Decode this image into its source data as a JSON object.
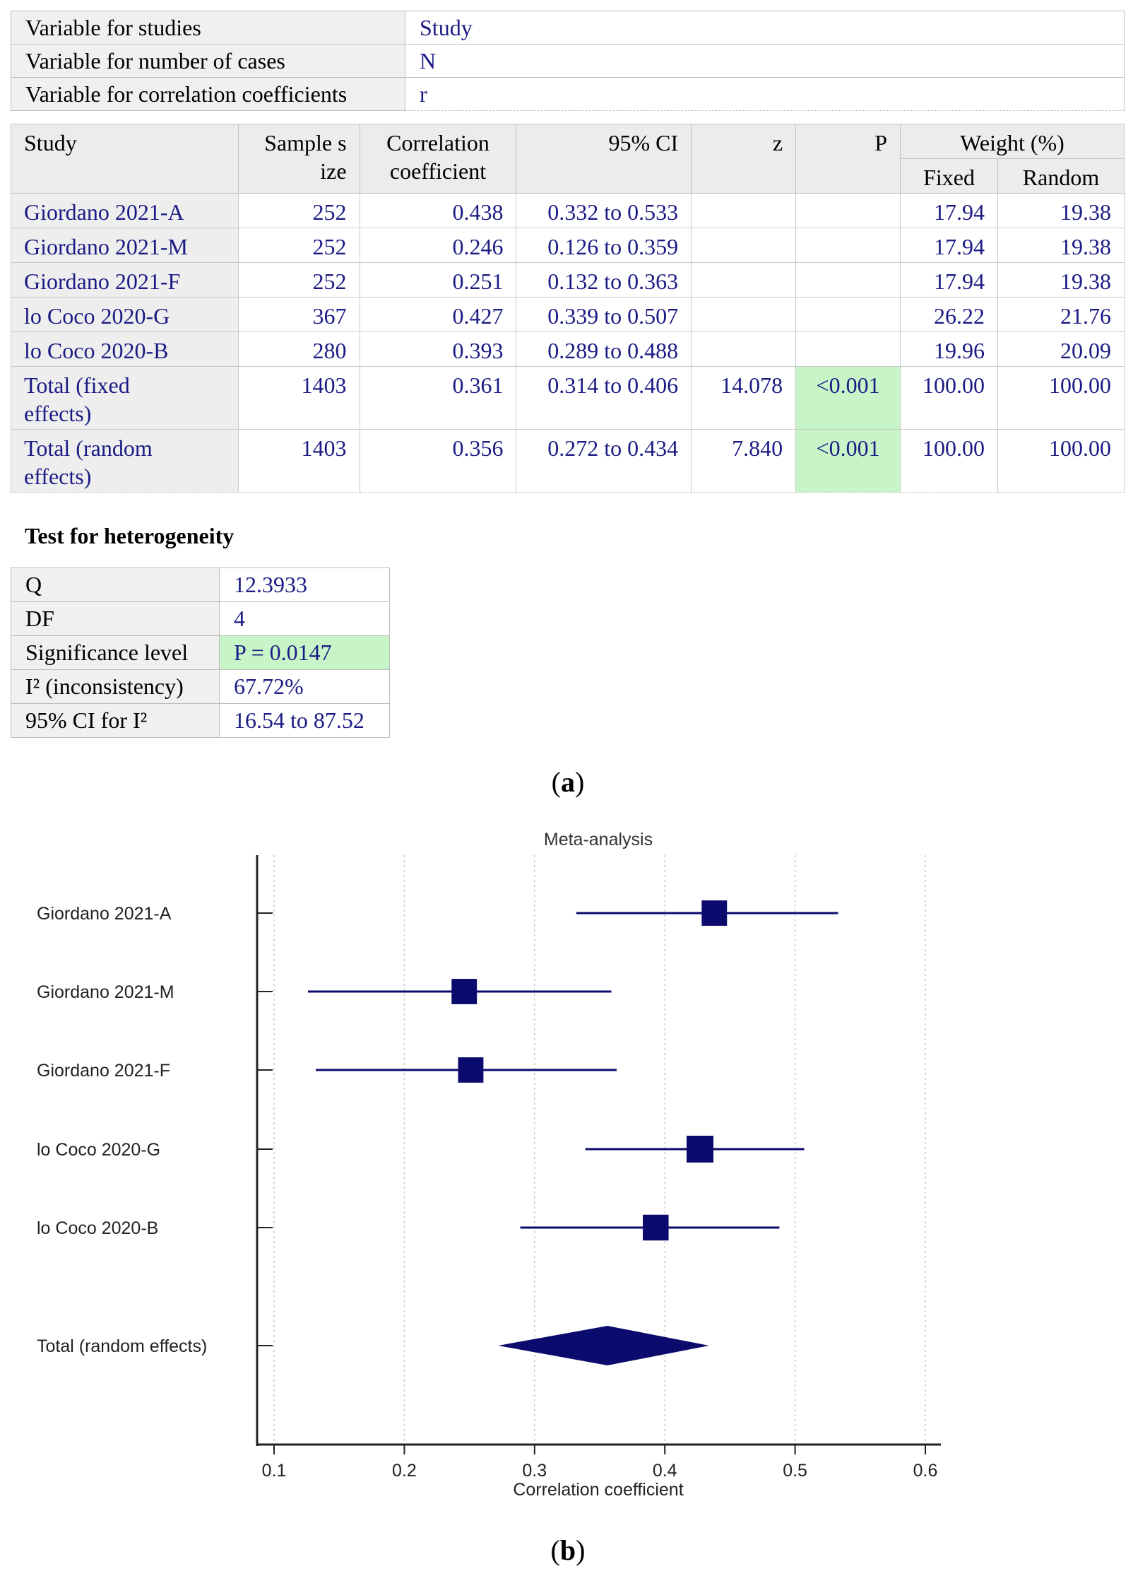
{
  "variables": [
    {
      "label": "Variable for studies",
      "value": "Study"
    },
    {
      "label": "Variable for number of cases",
      "value": "N"
    },
    {
      "label": "Variable for correlation coefficients",
      "value": "r"
    }
  ],
  "results": {
    "headers": {
      "study": "Study",
      "sample_size_1": "Sample s",
      "sample_size_2": "ize",
      "corr_1": "Correlation",
      "corr_2": "coefficient",
      "ci": "95% CI",
      "z": "z",
      "p": "P",
      "weight": "Weight (%)",
      "fixed": "Fixed",
      "random": "Random"
    },
    "rows": [
      {
        "study": "Giordano 2021-A",
        "n": "252",
        "r": "0.438",
        "ci": "0.332 to 0.533",
        "z": "",
        "p": "",
        "fixed": "17.94",
        "random": "19.38"
      },
      {
        "study": "Giordano 2021-M",
        "n": "252",
        "r": "0.246",
        "ci": "0.126 to 0.359",
        "z": "",
        "p": "",
        "fixed": "17.94",
        "random": "19.38"
      },
      {
        "study": "Giordano 2021-F",
        "n": "252",
        "r": "0.251",
        "ci": "0.132 to 0.363",
        "z": "",
        "p": "",
        "fixed": "17.94",
        "random": "19.38"
      },
      {
        "study": "lo Coco 2020-G",
        "n": "367",
        "r": "0.427",
        "ci": "0.339 to 0.507",
        "z": "",
        "p": "",
        "fixed": "26.22",
        "random": "21.76"
      },
      {
        "study": "lo Coco 2020-B",
        "n": "280",
        "r": "0.393",
        "ci": "0.289 to 0.488",
        "z": "",
        "p": "",
        "fixed": "19.96",
        "random": "20.09"
      }
    ],
    "totals": [
      {
        "study_1": "Total (fixed",
        "study_2": "effects)",
        "n": "1403",
        "r": "0.361",
        "ci": "0.314 to 0.406",
        "z": "14.078",
        "p": "<0.001",
        "fixed": "100.00",
        "random": "100.00"
      },
      {
        "study_1": "Total (random",
        "study_2": "effects)",
        "n": "1403",
        "r": "0.356",
        "ci": "0.272 to 0.434",
        "z": "7.840",
        "p": "<0.001",
        "fixed": "100.00",
        "random": "100.00"
      }
    ]
  },
  "heterogeneity": {
    "title": "Test for heterogeneity",
    "rows": [
      {
        "label": "Q",
        "value": "12.3933"
      },
      {
        "label": "DF",
        "value": "4"
      },
      {
        "label": "Significance level",
        "value": "P = 0.0147"
      },
      {
        "label": "I² (inconsistency)",
        "value": "67.72%"
      },
      {
        "label": "95% CI for I²",
        "value": "16.54 to 87.52"
      }
    ]
  },
  "panel_labels": {
    "a": "a",
    "b": "b"
  },
  "colors": {
    "marker": "#0b0b6e",
    "significant_bg": "#c8f5c8",
    "header_bg": "#ececec",
    "value_text": "#1b1b85"
  },
  "chart_data": {
    "type": "forest",
    "title": "Meta-analysis",
    "xlabel": "Correlation coefficient",
    "xlim": [
      0.1,
      0.6
    ],
    "xticks": [
      0.1,
      0.2,
      0.3,
      0.4,
      0.5,
      0.6
    ],
    "xtick_labels": [
      "0.1",
      "0.2",
      "0.3",
      "0.4",
      "0.5",
      "0.6"
    ],
    "grid": "vertical dotted",
    "studies": [
      {
        "label": "Giordano 2021-A",
        "estimate": 0.438,
        "ci_low": 0.332,
        "ci_high": 0.533,
        "weight": 19.38
      },
      {
        "label": "Giordano 2021-M",
        "estimate": 0.246,
        "ci_low": 0.126,
        "ci_high": 0.359,
        "weight": 19.38
      },
      {
        "label": "Giordano 2021-F",
        "estimate": 0.251,
        "ci_low": 0.132,
        "ci_high": 0.363,
        "weight": 19.38
      },
      {
        "label": "lo Coco 2020-G",
        "estimate": 0.427,
        "ci_low": 0.339,
        "ci_high": 0.507,
        "weight": 21.76
      },
      {
        "label": "lo Coco 2020-B",
        "estimate": 0.393,
        "ci_low": 0.289,
        "ci_high": 0.488,
        "weight": 20.09
      }
    ],
    "summary": {
      "label": "Total (random effects)",
      "estimate": 0.356,
      "ci_low": 0.272,
      "ci_high": 0.434
    }
  }
}
